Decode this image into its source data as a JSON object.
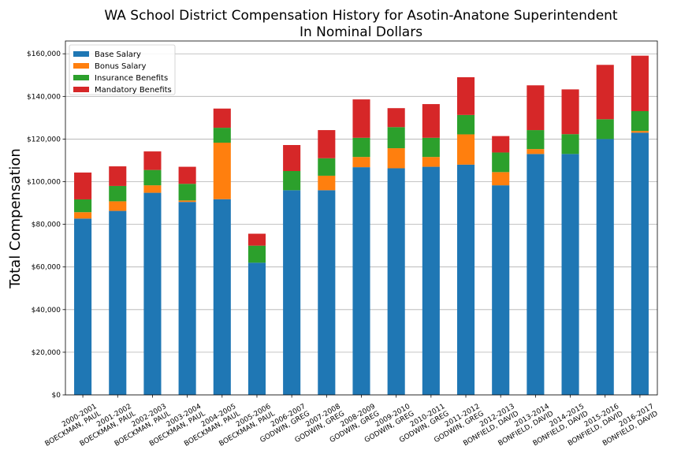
{
  "chart_data": {
    "type": "bar",
    "stacked": true,
    "title": "WA School District Compensation History for Asotin-Anatone Superintendent",
    "subtitle": "In Nominal Dollars",
    "xlabel": "",
    "ylabel": "Total Compensation",
    "ylim": [
      0,
      166000
    ],
    "yticks": [
      "$0",
      "$20,000",
      "$40,000",
      "$60,000",
      "$80,000",
      "$100,000",
      "$120,000",
      "$140,000",
      "$160,000"
    ],
    "ytick_values": [
      0,
      20000,
      40000,
      60000,
      80000,
      100000,
      120000,
      140000,
      160000
    ],
    "grid": "horizontal",
    "legend_position": "top-left",
    "categories": [
      [
        "2000-2001",
        "BOECKMAN, PAUL"
      ],
      [
        "2001-2002",
        "BOECKMAN, PAUL"
      ],
      [
        "2002-2003",
        "BOECKMAN, PAUL"
      ],
      [
        "2003-2004",
        "BOECKMAN, PAUL"
      ],
      [
        "2004-2005",
        "BOECKMAN, PAUL"
      ],
      [
        "2005-2006",
        "BOECKMAN, PAUL"
      ],
      [
        "2006-2007",
        "GODWIN, GREG"
      ],
      [
        "2007-2008",
        "GODWIN, GREG"
      ],
      [
        "2008-2009",
        "GODWIN, GREG"
      ],
      [
        "2009-2010",
        "GODWIN, GREG"
      ],
      [
        "2010-2011",
        "GODWIN, GREG"
      ],
      [
        "2011-2012",
        "GODWIN, GREG"
      ],
      [
        "2012-2013",
        "BONFIELD, DAVID"
      ],
      [
        "2013-2014",
        "BONFIELD, DAVID"
      ],
      [
        "2014-2015",
        "BONFIELD, DAVID"
      ],
      [
        "2015-2016",
        "BONFIELD, DAVID"
      ],
      [
        "2016-2017",
        "BONFIELD, DAVID"
      ]
    ],
    "series": [
      {
        "name": "Base Salary",
        "color": "#1f77b4",
        "values": [
          82700,
          86300,
          94800,
          90500,
          91800,
          62000,
          96000,
          96000,
          106800,
          106300,
          107000,
          108000,
          98300,
          113000,
          113000,
          120000,
          123000
        ]
      },
      {
        "name": "Bonus Salary",
        "color": "#ff7f0e",
        "values": [
          3000,
          4500,
          3500,
          700,
          26500,
          0,
          0,
          6800,
          4800,
          9400,
          4600,
          14200,
          6200,
          2300,
          0,
          0,
          800
        ]
      },
      {
        "name": "Insurance Benefits",
        "color": "#2ca02c",
        "values": [
          6000,
          7200,
          7200,
          7800,
          7000,
          8000,
          9000,
          8200,
          9000,
          9900,
          9000,
          9100,
          9200,
          8900,
          9300,
          9300,
          9300
        ]
      },
      {
        "name": "Mandatory Benefits",
        "color": "#d62728",
        "values": [
          12600,
          9200,
          8700,
          8000,
          9000,
          5600,
          12200,
          13200,
          18000,
          8900,
          15800,
          17700,
          7700,
          21000,
          21000,
          25500,
          26000
        ]
      }
    ]
  }
}
